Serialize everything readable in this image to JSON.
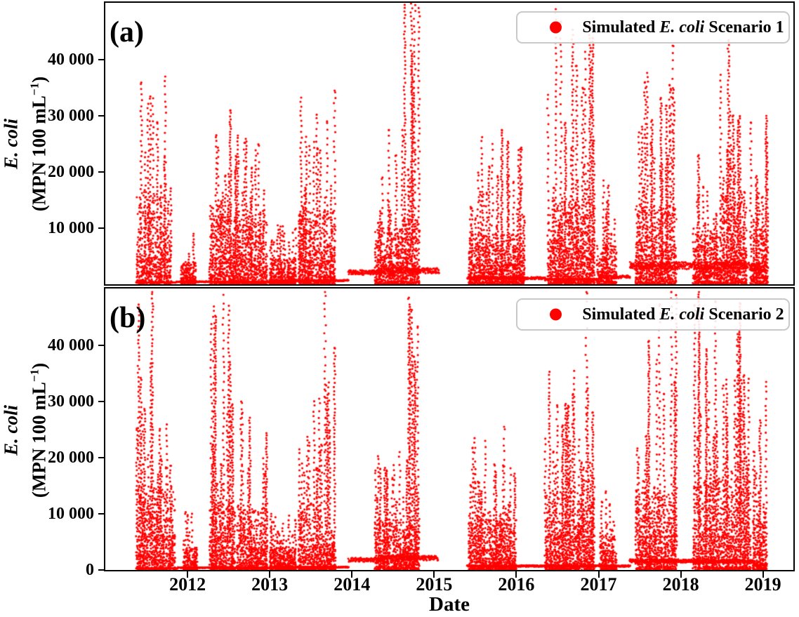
{
  "figure": {
    "xlabel": "Date"
  },
  "x_ticks": [
    {
      "value": 2012,
      "label": "2012"
    },
    {
      "value": 2013,
      "label": "2013"
    },
    {
      "value": 2014,
      "label": "2014"
    },
    {
      "value": 2015,
      "label": "2015"
    },
    {
      "value": 2016,
      "label": "2016"
    },
    {
      "value": 2017,
      "label": "2017"
    },
    {
      "value": 2018,
      "label": "2018"
    },
    {
      "value": 2019,
      "label": "2019"
    }
  ],
  "chart_data": [
    {
      "panel": "a",
      "type": "scatter",
      "panel_label": "(a)",
      "marker": "circle",
      "marker_color": "#ff0000",
      "legend": {
        "pre": "Simulated",
        "italic": "E. coli",
        "post": "Scenario 1"
      },
      "ylabel": {
        "line1_italic": "E. coli",
        "line2_pre": "(MPN 100 mL",
        "line2_sup": "−1",
        "line2_post": ")"
      },
      "xlim": [
        2011.0,
        2019.37
      ],
      "ylim": [
        0,
        50125
      ],
      "grid": false,
      "legend_position": "upper right",
      "y_ticks": [
        {
          "value": 10000,
          "label": "10 000"
        },
        {
          "value": 20000,
          "label": "20 000"
        },
        {
          "value": 30000,
          "label": "30 000"
        },
        {
          "value": 40000,
          "label": "40 000"
        }
      ],
      "spike_events": [
        {
          "start": 2011.38,
          "end": 2011.8,
          "peak": 37000,
          "dense_top": 16000
        },
        {
          "start": 2011.92,
          "end": 2012.1,
          "peak": 9000,
          "dense_top": 4000
        },
        {
          "start": 2012.27,
          "end": 2012.6,
          "peak": 31000,
          "dense_top": 14000
        },
        {
          "start": 2012.6,
          "end": 2012.97,
          "peak": 26500,
          "dense_top": 11000
        },
        {
          "start": 2013.0,
          "end": 2013.32,
          "peak": 10500,
          "dense_top": 4500
        },
        {
          "start": 2013.35,
          "end": 2013.8,
          "peak": 34500,
          "dense_top": 13000
        },
        {
          "start": 2014.28,
          "end": 2014.62,
          "peak": 27500,
          "dense_top": 10000
        },
        {
          "start": 2014.62,
          "end": 2014.82,
          "peak": 52000,
          "dense_top": 12000
        },
        {
          "start": 2015.42,
          "end": 2016.1,
          "peak": 27500,
          "dense_top": 9000
        },
        {
          "start": 2016.38,
          "end": 2016.95,
          "peak": 49000,
          "dense_top": 15000
        },
        {
          "start": 2016.98,
          "end": 2017.22,
          "peak": 18500,
          "dense_top": 7000
        },
        {
          "start": 2017.45,
          "end": 2017.95,
          "peak": 42500,
          "dense_top": 14000
        },
        {
          "start": 2018.15,
          "end": 2018.48,
          "peak": 23000,
          "dense_top": 9000
        },
        {
          "start": 2018.48,
          "end": 2018.8,
          "peak": 43500,
          "dense_top": 16000
        },
        {
          "start": 2018.85,
          "end": 2019.06,
          "peak": 30000,
          "dense_top": 9000
        }
      ],
      "baseline_segments": [
        {
          "start": 2011.38,
          "end": 2011.86,
          "level": 300
        },
        {
          "start": 2011.86,
          "end": 2012.3,
          "level": 450
        },
        {
          "start": 2012.3,
          "end": 2013.0,
          "level": 400
        },
        {
          "start": 2013.0,
          "end": 2013.96,
          "level": 650
        },
        {
          "start": 2013.96,
          "end": 2014.35,
          "level": 2100
        },
        {
          "start": 2014.35,
          "end": 2015.06,
          "level": 2400
        },
        {
          "start": 2015.4,
          "end": 2016.35,
          "level": 1100
        },
        {
          "start": 2016.35,
          "end": 2017.0,
          "level": 850
        },
        {
          "start": 2017.0,
          "end": 2017.38,
          "level": 1300
        },
        {
          "start": 2017.38,
          "end": 2018.85,
          "level": 3300
        },
        {
          "start": 2018.85,
          "end": 2019.06,
          "level": 2900
        }
      ]
    },
    {
      "panel": "b",
      "type": "scatter",
      "panel_label": "(b)",
      "marker": "circle",
      "marker_color": "#ff0000",
      "legend": {
        "pre": "Simulated",
        "italic": "E. coli",
        "post": "Scenario 2"
      },
      "ylabel": {
        "line1_italic": "E. coli",
        "line2_pre": "(MPN 100 mL",
        "line2_sup": "−1",
        "line2_post": ")"
      },
      "xlim": [
        2011.0,
        2019.37
      ],
      "ylim": [
        0,
        50125
      ],
      "grid": false,
      "legend_position": "upper right",
      "y_ticks": [
        {
          "value": 0,
          "label": "0"
        },
        {
          "value": 10000,
          "label": "10 000"
        },
        {
          "value": 20000,
          "label": "20 000"
        },
        {
          "value": 30000,
          "label": "30 000"
        },
        {
          "value": 40000,
          "label": "40 000"
        }
      ],
      "spike_events": [
        {
          "start": 2011.38,
          "end": 2011.85,
          "peak": 49500,
          "dense_top": 15000
        },
        {
          "start": 2011.95,
          "end": 2012.12,
          "peak": 10300,
          "dense_top": 4000
        },
        {
          "start": 2012.27,
          "end": 2012.58,
          "peak": 49000,
          "dense_top": 12000
        },
        {
          "start": 2012.6,
          "end": 2012.97,
          "peak": 30000,
          "dense_top": 11000
        },
        {
          "start": 2013.0,
          "end": 2013.32,
          "peak": 10000,
          "dense_top": 4000
        },
        {
          "start": 2013.35,
          "end": 2013.62,
          "peak": 30500,
          "dense_top": 12000
        },
        {
          "start": 2013.62,
          "end": 2013.8,
          "peak": 49500,
          "dense_top": 5000
        },
        {
          "start": 2014.28,
          "end": 2014.65,
          "peak": 21000,
          "dense_top": 9000
        },
        {
          "start": 2014.65,
          "end": 2014.82,
          "peak": 48500,
          "dense_top": 8000
        },
        {
          "start": 2015.42,
          "end": 2016.0,
          "peak": 25500,
          "dense_top": 9000
        },
        {
          "start": 2016.35,
          "end": 2016.95,
          "peak": 49500,
          "dense_top": 14000
        },
        {
          "start": 2017.02,
          "end": 2017.22,
          "peak": 14000,
          "dense_top": 6000
        },
        {
          "start": 2017.45,
          "end": 2017.95,
          "peak": 49500,
          "dense_top": 14000
        },
        {
          "start": 2018.15,
          "end": 2018.85,
          "peak": 49500,
          "dense_top": 16000
        },
        {
          "start": 2018.88,
          "end": 2019.05,
          "peak": 33500,
          "dense_top": 9000
        }
      ],
      "baseline_segments": [
        {
          "start": 2011.38,
          "end": 2011.88,
          "level": 250
        },
        {
          "start": 2011.88,
          "end": 2012.3,
          "level": 400
        },
        {
          "start": 2012.3,
          "end": 2013.0,
          "level": 350
        },
        {
          "start": 2013.0,
          "end": 2013.96,
          "level": 500
        },
        {
          "start": 2013.96,
          "end": 2014.35,
          "level": 1800
        },
        {
          "start": 2014.35,
          "end": 2015.05,
          "level": 2100
        },
        {
          "start": 2015.4,
          "end": 2016.35,
          "level": 700
        },
        {
          "start": 2016.35,
          "end": 2017.38,
          "level": 700
        },
        {
          "start": 2017.38,
          "end": 2018.15,
          "level": 1600
        },
        {
          "start": 2018.15,
          "end": 2018.88,
          "level": 1500
        },
        {
          "start": 2018.88,
          "end": 2019.05,
          "level": 900
        }
      ]
    }
  ]
}
